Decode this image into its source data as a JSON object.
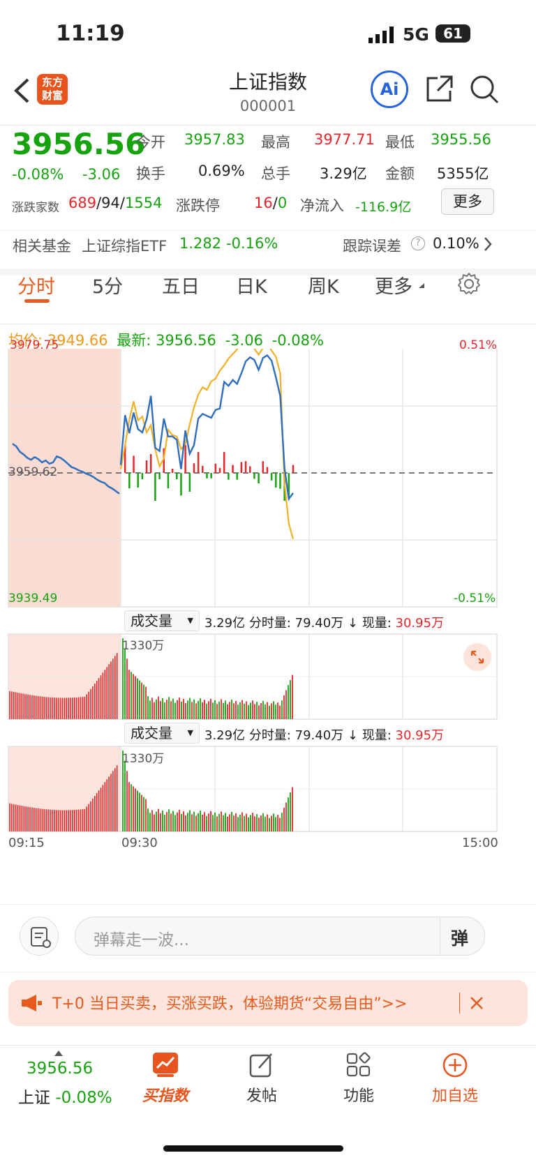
{
  "status": {
    "time": "11:19",
    "network": "5G",
    "battery": "61"
  },
  "header": {
    "title": "上证指数",
    "code": "000001",
    "logo": "东方\n财富",
    "ai_label": "Ai",
    "back_icon": "chevron-left-icon",
    "share_icon": "share-icon",
    "search_icon": "search-icon"
  },
  "quote": {
    "price": "3956.56",
    "change_pct": "-0.08%",
    "change": "-3.06",
    "open_label": "今开",
    "open": "3957.83",
    "high_label": "最高",
    "high": "3977.71",
    "low_label": "最低",
    "low": "3955.56",
    "turnover_label": "换手",
    "turnover": "0.69%",
    "volume_label": "总手",
    "volume": "3.29亿",
    "amount_label": "金额",
    "amount": "5355亿",
    "breadth_label": "涨跌家数",
    "up": "689",
    "flat": "94",
    "down": "1554",
    "limit_label": "涨跌停",
    "limit_up": "16",
    "limit_down": "0",
    "inflow_label": "净流入",
    "inflow": "-116.9亿",
    "more_button": "更多"
  },
  "fund": {
    "label": "相关基金",
    "name": "上证综指ETF",
    "price": "1.282",
    "pct": "-0.16%",
    "err_label": "跟踪误差",
    "err": "0.10%"
  },
  "tabs": {
    "items": [
      "分时",
      "5分",
      "五日",
      "日K",
      "周K",
      "更多"
    ],
    "active": 0
  },
  "legend": {
    "avg_label": "均价:",
    "avg": "3949.66",
    "last_label": "最新:",
    "last": "3956.56",
    "chg": "-3.06",
    "pct": "-0.08%"
  },
  "axis": {
    "top": "3979.75",
    "mid": "3959.62",
    "bottom": "3939.49",
    "pct_top": "0.51%",
    "pct_bottom": "-0.51%",
    "t0": "09:15",
    "t1": "09:30",
    "t2": "15:00"
  },
  "volume_panel": {
    "selector": "成交量",
    "total": "3.29亿",
    "minute_label": "分时量:",
    "minute": "79.40万 ↓",
    "now_label": "现量:",
    "now": "30.95万",
    "peak": "1330万"
  },
  "comment": {
    "placeholder": "弹幕走一波...",
    "danmu_btn": "弹"
  },
  "banner": {
    "text": "T+0 当日买卖，买涨买跌，体验期货“交易自由”>>"
  },
  "bottom": {
    "price": "3956.56",
    "name": "上证",
    "pct": "-0.08%",
    "items": [
      "买指数",
      "发帖",
      "功能",
      "加自选"
    ]
  },
  "colors": {
    "up": "#e5262b",
    "down": "#16a30f",
    "avg": "#f2b125",
    "price_line": "#2f6ebd",
    "accent": "#e85a1c"
  },
  "chart_data": {
    "type": "line",
    "x_label_start": "09:15",
    "x_label_end": "15:00",
    "ylim": [
      3939.49,
      3979.75
    ],
    "prev_close": 3959.62,
    "pre_open_price": [
      3964.0,
      3963.6,
      3962.8,
      3962.4,
      3961.9,
      3961.6,
      3962.0,
      3961.7,
      3961.2,
      3961.5,
      3961.0,
      3961.2,
      3962.1,
      3961.9,
      3961.5,
      3961.0,
      3960.5,
      3960.3,
      3960.0,
      3959.8,
      3959.5,
      3959.3,
      3959.0,
      3958.6,
      3958.3,
      3958.1,
      3957.6,
      3957.3,
      3956.9,
      3956.5
    ],
    "price": [
      3960.8,
      3968.3,
      3965.6,
      3968.7,
      3966.2,
      3965.7,
      3967.7,
      3971.2,
      3963.4,
      3962.9,
      3967.8,
      3965.1,
      3965.1,
      3964.6,
      3960.2,
      3966.0,
      3962.5,
      3963.8,
      3967.8,
      3968.5,
      3968.2,
      3967.9,
      3969.1,
      3969.3,
      3973.3,
      3972.7,
      3973.6,
      3973.0,
      3974.6,
      3976.4,
      3977.0,
      3976.6,
      3975.1,
      3976.9,
      3977.3,
      3976.5,
      3974.0,
      3971.2,
      3960.4,
      3955.7,
      3956.6
    ],
    "avg": [
      3960.2,
      3963.8,
      3967.6,
      3970.4,
      3967.5,
      3968.1,
      3965.7,
      3966.8,
      3963.2,
      3960.6,
      3961.8,
      3966.1,
      3965.3,
      3965.1,
      3963.2,
      3964.0,
      3966.9,
      3969.5,
      3971.4,
      3972.5,
      3972.1,
      3973.4,
      3973.8,
      3975.0,
      3975.8,
      3976.8,
      3977.5,
      3978.2,
      3979.2,
      3979.6,
      3978.8,
      3978.3,
      3977.4,
      3978.4,
      3979.0,
      3978.0,
      3977.1,
      3974.6,
      3958.1,
      3952.0,
      3949.7
    ]
  }
}
